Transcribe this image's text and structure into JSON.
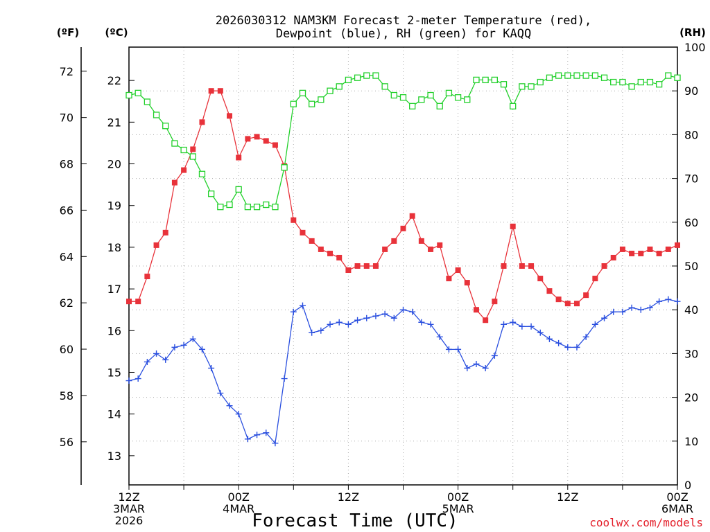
{
  "chart_data": {
    "type": "line",
    "title_lines": [
      "2026030312 NAM3KM Forecast 2-meter Temperature (red),",
      "Dewpoint (blue), RH (green) for KAQQ"
    ],
    "xlabel": "Forecast Time (UTC)",
    "credit": "coolwx.com/models",
    "units": {
      "f": "(ºF)",
      "c": "(ºC)",
      "rh": "(RH)"
    },
    "x_range_hours": [
      0,
      60
    ],
    "x_ticks": [
      {
        "h": 0,
        "lines": [
          "12Z",
          "3MAR",
          "2026"
        ]
      },
      {
        "h": 12,
        "lines": [
          "00Z",
          "4MAR"
        ]
      },
      {
        "h": 24,
        "lines": [
          "12Z"
        ]
      },
      {
        "h": 36,
        "lines": [
          "00Z",
          "5MAR"
        ]
      },
      {
        "h": 48,
        "lines": [
          "12Z"
        ]
      },
      {
        "h": 60,
        "lines": [
          "00Z",
          "6MAR"
        ]
      }
    ],
    "c_axis": {
      "range": [
        12.3,
        22.8
      ],
      "ticks": [
        13,
        14,
        15,
        16,
        17,
        18,
        19,
        20,
        21,
        22
      ]
    },
    "f_axis": {
      "ticks": [
        56,
        58,
        60,
        62,
        64,
        66,
        68,
        70,
        72
      ]
    },
    "rh_axis": {
      "range": [
        0,
        100
      ],
      "ticks": [
        0,
        10,
        20,
        30,
        40,
        50,
        60,
        70,
        80,
        90,
        100
      ]
    },
    "series": [
      {
        "name": "2-meter Temperature",
        "color": "#e8323a",
        "marker": "filled-square",
        "axis": "c",
        "values": [
          16.7,
          16.7,
          17.3,
          18.05,
          18.35,
          19.55,
          19.85,
          20.35,
          21.0,
          21.75,
          21.75,
          21.15,
          20.15,
          20.6,
          20.65,
          20.55,
          20.45,
          19.95,
          18.65,
          18.35,
          18.15,
          17.95,
          17.85,
          17.75,
          17.45,
          17.55,
          17.55,
          17.55,
          17.95,
          18.15,
          18.45,
          18.75,
          18.15,
          17.95,
          18.05,
          17.25,
          17.45,
          17.15,
          16.5,
          16.25,
          16.7,
          17.55,
          18.5,
          17.55,
          17.55,
          17.25,
          16.95,
          16.75,
          16.65,
          16.65,
          16.85,
          17.25,
          17.55,
          17.75,
          17.95,
          17.85,
          17.85,
          17.95,
          17.85,
          17.95,
          18.05
        ]
      },
      {
        "name": "Dewpoint",
        "color": "#2a4fdf",
        "marker": "plus",
        "axis": "c",
        "values": [
          14.8,
          14.85,
          15.25,
          15.45,
          15.3,
          15.6,
          15.65,
          15.8,
          15.55,
          15.1,
          14.5,
          14.2,
          14.0,
          13.4,
          13.5,
          13.55,
          13.3,
          14.85,
          16.45,
          16.6,
          15.95,
          16.0,
          16.15,
          16.2,
          16.15,
          16.25,
          16.3,
          16.35,
          16.4,
          16.3,
          16.5,
          16.45,
          16.2,
          16.15,
          15.85,
          15.55,
          15.55,
          15.1,
          15.2,
          15.1,
          15.4,
          16.15,
          16.2,
          16.1,
          16.1,
          15.95,
          15.8,
          15.7,
          15.6,
          15.6,
          15.85,
          16.15,
          16.3,
          16.45,
          16.45,
          16.55,
          16.5,
          16.55,
          16.7,
          16.75,
          16.7
        ]
      },
      {
        "name": "RH",
        "color": "#21d02a",
        "marker": "open-square",
        "axis": "rh",
        "values": [
          89,
          89.5,
          87.5,
          84.5,
          82,
          78,
          76.5,
          75,
          71,
          66.5,
          63.5,
          64,
          67.5,
          63.5,
          63.5,
          64,
          63.5,
          72.5,
          87,
          89.5,
          87,
          88,
          90,
          91,
          92.5,
          93,
          93.5,
          93.5,
          91,
          89,
          88.5,
          86.5,
          88,
          89,
          86.5,
          89.5,
          88.5,
          88,
          92.5,
          92.5,
          92.5,
          91.5,
          86.5,
          91,
          91,
          92,
          93,
          93.5,
          93.5,
          93.5,
          93.5,
          93.5,
          93,
          92,
          92,
          91,
          92,
          92,
          91.5,
          93.5,
          93
        ]
      }
    ]
  }
}
